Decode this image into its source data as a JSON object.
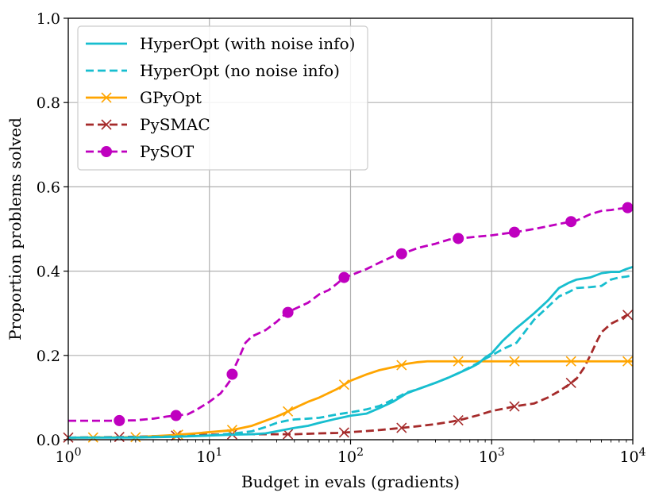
{
  "chart_data": {
    "type": "line",
    "title": "",
    "xlabel": "Budget in evals (gradients)",
    "ylabel": "Proportion problems solved",
    "xscale": "log",
    "xlim": [
      1,
      10000
    ],
    "ylim": [
      0.0,
      1.0
    ],
    "grid": true,
    "legend_position": "top-left",
    "x_ticks": [
      {
        "value": 1,
        "base": "10",
        "exp": "0"
      },
      {
        "value": 10,
        "base": "10",
        "exp": "1"
      },
      {
        "value": 100,
        "base": "10",
        "exp": "2"
      },
      {
        "value": 1000,
        "base": "10",
        "exp": "3"
      },
      {
        "value": 10000,
        "base": "10",
        "exp": "4"
      }
    ],
    "y_ticks": [
      {
        "value": 0.0,
        "label": "0.0"
      },
      {
        "value": 0.2,
        "label": "0.2"
      },
      {
        "value": 0.4,
        "label": "0.4"
      },
      {
        "value": 0.6,
        "label": "0.6"
      },
      {
        "value": 0.8,
        "label": "0.8"
      },
      {
        "value": 1.0,
        "label": "1.0"
      }
    ],
    "series": [
      {
        "name": "HyperOpt (with noise info)",
        "color": "#17becf",
        "dash": "solid",
        "marker": "none",
        "x": [
          1,
          3,
          6,
          10,
          15,
          20,
          25,
          30,
          40,
          50,
          60,
          80,
          100,
          130,
          160,
          200,
          250,
          300,
          400,
          500,
          600,
          700,
          800,
          900,
          1000,
          1200,
          1500,
          1700,
          2000,
          2500,
          3000,
          3500,
          4000,
          5000,
          6000,
          7000,
          8000,
          9000,
          10000
        ],
        "y": [
          0.005,
          0.005,
          0.007,
          0.01,
          0.012,
          0.013,
          0.015,
          0.02,
          0.028,
          0.033,
          0.04,
          0.05,
          0.057,
          0.062,
          0.075,
          0.09,
          0.11,
          0.12,
          0.135,
          0.148,
          0.16,
          0.17,
          0.18,
          0.195,
          0.205,
          0.235,
          0.265,
          0.28,
          0.3,
          0.33,
          0.36,
          0.372,
          0.38,
          0.385,
          0.395,
          0.398,
          0.398,
          0.405,
          0.41
        ]
      },
      {
        "name": "HyperOpt (no noise info)",
        "color": "#17becf",
        "dash": "dashed",
        "marker": "none",
        "x": [
          1,
          3,
          6,
          10,
          15,
          20,
          25,
          30,
          35,
          40,
          50,
          60,
          80,
          100,
          130,
          160,
          200,
          250,
          300,
          400,
          500,
          600,
          700,
          800,
          900,
          1000,
          1200,
          1500,
          2000,
          2500,
          3000,
          3500,
          4000,
          5000,
          6000,
          7000,
          8000,
          9000,
          10000
        ],
        "y": [
          0.005,
          0.006,
          0.008,
          0.01,
          0.015,
          0.02,
          0.03,
          0.04,
          0.045,
          0.048,
          0.05,
          0.052,
          0.06,
          0.065,
          0.072,
          0.08,
          0.095,
          0.112,
          0.12,
          0.135,
          0.148,
          0.16,
          0.172,
          0.182,
          0.192,
          0.2,
          0.215,
          0.23,
          0.285,
          0.315,
          0.34,
          0.35,
          0.36,
          0.362,
          0.365,
          0.38,
          0.385,
          0.387,
          0.39
        ]
      },
      {
        "name": "GPyOpt",
        "color": "#ffa500",
        "dash": "solid",
        "marker": "x",
        "markers_x": [
          1.5,
          3.0,
          6.0,
          14.5,
          36,
          90,
          230,
          580,
          1450,
          3650,
          9200
        ],
        "x": [
          1,
          3,
          5,
          8,
          10,
          14,
          20,
          25,
          30,
          35,
          40,
          50,
          60,
          80,
          100,
          130,
          160,
          200,
          250,
          300,
          350,
          500,
          1000,
          2000,
          5000,
          10000
        ],
        "y": [
          0.005,
          0.006,
          0.01,
          0.015,
          0.018,
          0.022,
          0.033,
          0.045,
          0.055,
          0.065,
          0.075,
          0.09,
          0.1,
          0.12,
          0.14,
          0.155,
          0.165,
          0.172,
          0.18,
          0.184,
          0.186,
          0.186,
          0.186,
          0.186,
          0.186,
          0.186
        ]
      },
      {
        "name": "PySMAC",
        "color": "#a52a2a",
        "dash": "dashed",
        "marker": "x",
        "markers_x": [
          1.0,
          2.3,
          5.8,
          14.5,
          36,
          90,
          230,
          580,
          1450,
          3650,
          9200
        ],
        "x": [
          1,
          3,
          6,
          10,
          15,
          20,
          30,
          40,
          60,
          80,
          100,
          150,
          200,
          300,
          400,
          500,
          600,
          800,
          1000,
          1500,
          2000,
          2500,
          3000,
          3500,
          4000,
          4500,
          5000,
          5500,
          6000,
          7000,
          8000,
          9000,
          10000
        ],
        "y": [
          0.005,
          0.007,
          0.01,
          0.012,
          0.013,
          0.013,
          0.013,
          0.013,
          0.015,
          0.016,
          0.018,
          0.022,
          0.026,
          0.032,
          0.037,
          0.042,
          0.047,
          0.058,
          0.068,
          0.08,
          0.086,
          0.1,
          0.115,
          0.13,
          0.145,
          0.17,
          0.2,
          0.23,
          0.255,
          0.275,
          0.285,
          0.295,
          0.3
        ]
      },
      {
        "name": "PySOT",
        "color": "#bf00bf",
        "dash": "dashed",
        "marker": "o",
        "markers_x": [
          2.3,
          5.8,
          14.5,
          36,
          90,
          230,
          580,
          1450,
          3650,
          9200
        ],
        "x": [
          1,
          2,
          3,
          4,
          5,
          6,
          7,
          8,
          10,
          12,
          13,
          14,
          15,
          16,
          18,
          20,
          25,
          30,
          35,
          40,
          50,
          60,
          70,
          80,
          90,
          100,
          130,
          160,
          200,
          250,
          300,
          400,
          500,
          600,
          700,
          800,
          1000,
          1500,
          2000,
          3000,
          4000,
          5000,
          6000,
          7000,
          8000,
          10000
        ],
        "y": [
          0.045,
          0.045,
          0.046,
          0.05,
          0.055,
          0.058,
          0.06,
          0.07,
          0.09,
          0.11,
          0.125,
          0.14,
          0.17,
          0.19,
          0.23,
          0.245,
          0.26,
          0.28,
          0.3,
          0.31,
          0.325,
          0.345,
          0.355,
          0.37,
          0.385,
          0.39,
          0.405,
          0.42,
          0.435,
          0.445,
          0.455,
          0.465,
          0.475,
          0.478,
          0.48,
          0.482,
          0.485,
          0.493,
          0.5,
          0.512,
          0.52,
          0.535,
          0.543,
          0.545,
          0.548,
          0.552
        ]
      }
    ]
  }
}
